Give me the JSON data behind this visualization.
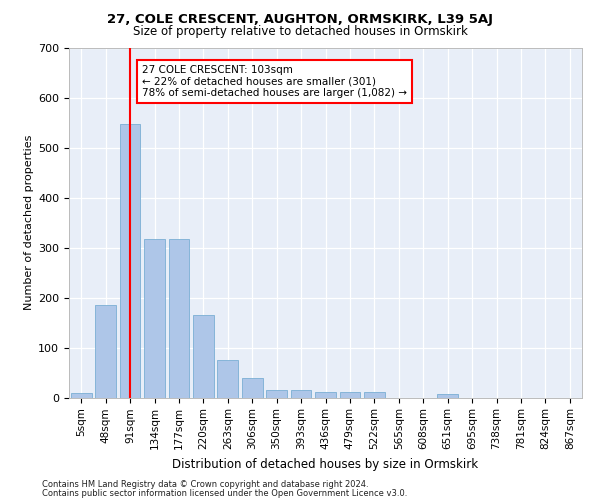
{
  "title": "27, COLE CRESCENT, AUGHTON, ORMSKIRK, L39 5AJ",
  "subtitle": "Size of property relative to detached houses in Ormskirk",
  "xlabel": "Distribution of detached houses by size in Ormskirk",
  "ylabel": "Number of detached properties",
  "bar_labels": [
    "5sqm",
    "48sqm",
    "91sqm",
    "134sqm",
    "177sqm",
    "220sqm",
    "263sqm",
    "306sqm",
    "350sqm",
    "393sqm",
    "436sqm",
    "479sqm",
    "522sqm",
    "565sqm",
    "608sqm",
    "651sqm",
    "695sqm",
    "738sqm",
    "781sqm",
    "824sqm",
    "867sqm"
  ],
  "bar_values": [
    10,
    185,
    548,
    317,
    317,
    165,
    75,
    40,
    16,
    16,
    11,
    11,
    11,
    0,
    0,
    7,
    0,
    0,
    0,
    0,
    0
  ],
  "bar_color": "#aec6e8",
  "bar_edge_color": "#7aafd4",
  "vline_x": 2,
  "vline_color": "red",
  "annotation_text": "27 COLE CRESCENT: 103sqm\n← 22% of detached houses are smaller (301)\n78% of semi-detached houses are larger (1,082) →",
  "annotation_box_color": "white",
  "annotation_box_edge": "red",
  "ylim": [
    0,
    700
  ],
  "yticks": [
    0,
    100,
    200,
    300,
    400,
    500,
    600,
    700
  ],
  "axes_background": "#e8eef8",
  "footer_line1": "Contains HM Land Registry data © Crown copyright and database right 2024.",
  "footer_line2": "Contains public sector information licensed under the Open Government Licence v3.0."
}
